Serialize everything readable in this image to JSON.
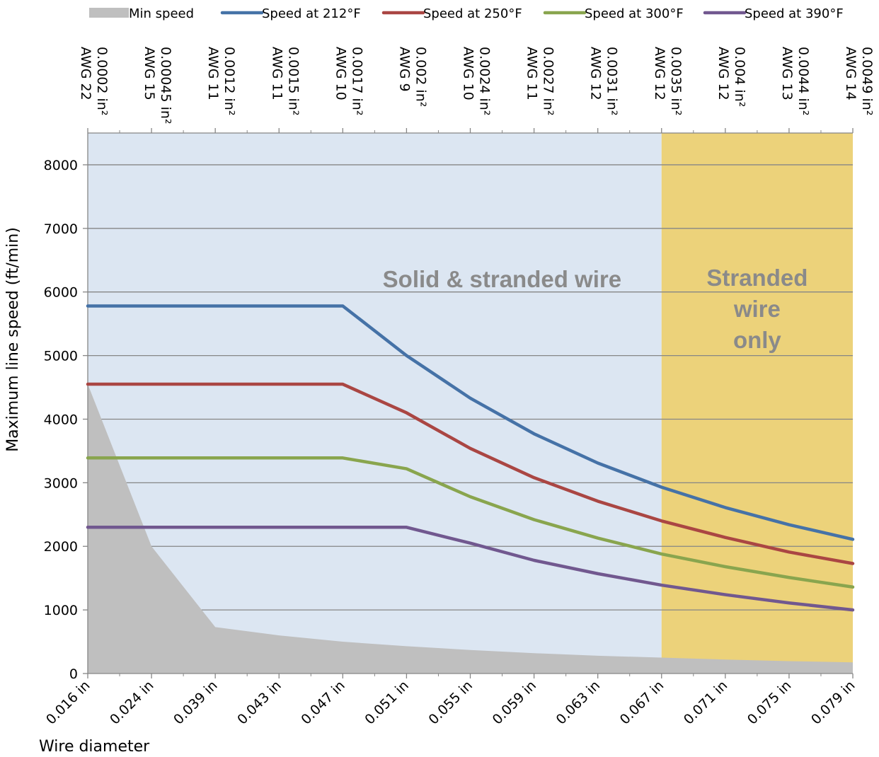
{
  "chart_data": {
    "type": "line",
    "xlabel": "Wire diameter",
    "ylabel": "Maximum line speed (ft/min)",
    "ylim": [
      0,
      8500
    ],
    "yticks": [
      0,
      1000,
      2000,
      3000,
      4000,
      5000,
      6000,
      7000,
      8000
    ],
    "grid": true,
    "legend_position": "top",
    "categories": [
      "0.016 in",
      "0.024 in",
      "0.039 in",
      "0.043 in",
      "0.047 in",
      "0.051 in",
      "0.055 in",
      "0.059 in",
      "0.063 in",
      "0.067 in",
      "0.071 in",
      "0.075 in",
      "0.079 in"
    ],
    "top_axis": [
      {
        "awg": "AWG 22",
        "area": "0.0002 in²"
      },
      {
        "awg": "AWG 15",
        "area": "0.00045 in²"
      },
      {
        "awg": "AWG 11",
        "area": "0.0012 in²"
      },
      {
        "awg": "AWG 11",
        "area": "0.0015 in²"
      },
      {
        "awg": "AWG 10",
        "area": "0.0017 in²"
      },
      {
        "awg": "AWG 9",
        "area": "0.002 in²"
      },
      {
        "awg": "AWG 10",
        "area": "0.0024 in²"
      },
      {
        "awg": "AWG 11",
        "area": "0.0027 in²"
      },
      {
        "awg": "AWG 12",
        "area": "0.0031 in²"
      },
      {
        "awg": "AWG 12",
        "area": "0.0035 in²"
      },
      {
        "awg": "AWG 12",
        "area": "0.004 in²"
      },
      {
        "awg": "AWG 13",
        "area": "0.0044 in²"
      },
      {
        "awg": "AWG 14",
        "area": "0.0049 in²"
      }
    ],
    "regions": [
      {
        "label": "Solid & stranded wire",
        "from_index": 0,
        "to_index": 9,
        "color": "#dce6f2"
      },
      {
        "label": "Stranded wire only",
        "from_index": 9,
        "to_index": 12,
        "color": "#ecd27a"
      }
    ],
    "series": [
      {
        "name": "Min speed",
        "type": "area",
        "color": "#bfbfbf",
        "values": [
          4550,
          2000,
          730,
          600,
          500,
          430,
          370,
          320,
          280,
          250,
          220,
          195,
          175
        ]
      },
      {
        "name": "Speed at 212°F",
        "type": "line",
        "color": "#4572a7",
        "values": [
          5780,
          5780,
          5780,
          5780,
          5780,
          5000,
          4330,
          3770,
          3310,
          2930,
          2610,
          2340,
          2110
        ]
      },
      {
        "name": "Speed at 250°F",
        "type": "line",
        "color": "#aa4643",
        "values": [
          4550,
          4550,
          4550,
          4550,
          4550,
          4100,
          3540,
          3080,
          2710,
          2400,
          2140,
          1910,
          1730
        ]
      },
      {
        "name": "Speed at 300°F",
        "type": "line",
        "color": "#89a54e",
        "values": [
          3390,
          3390,
          3390,
          3390,
          3390,
          3220,
          2780,
          2420,
          2130,
          1880,
          1680,
          1510,
          1360
        ]
      },
      {
        "name": "Speed at 390°F",
        "type": "line",
        "color": "#71588f",
        "values": [
          2300,
          2300,
          2300,
          2300,
          2300,
          2300,
          2050,
          1780,
          1570,
          1390,
          1240,
          1110,
          1000
        ]
      }
    ]
  }
}
